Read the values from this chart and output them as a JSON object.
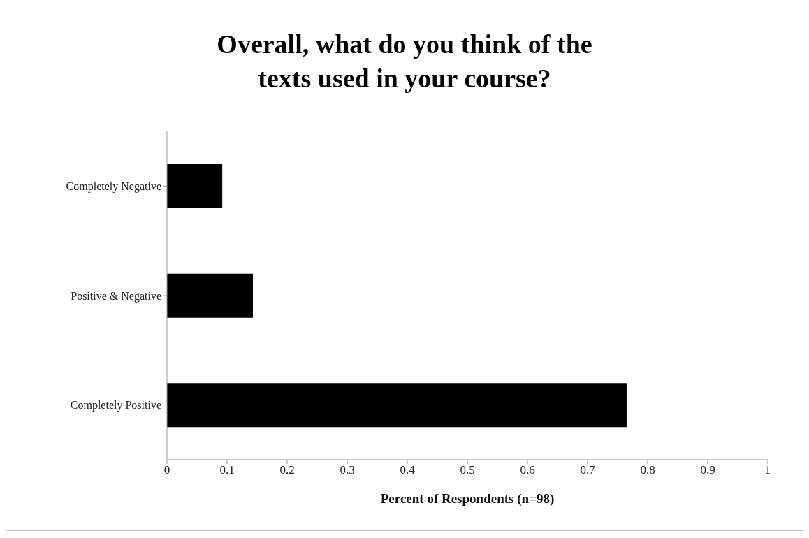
{
  "chart_data": {
    "type": "bar",
    "orientation": "horizontal",
    "title": "Overall, what do you think of the texts used in your course?",
    "xlabel": "Percent of Respondents (n=98)",
    "categories": [
      "Completely Negative",
      "Positive & Negative",
      "Completely Positive"
    ],
    "values": [
      0.092,
      0.143,
      0.765
    ],
    "color": "#000000",
    "xlim": [
      0,
      1
    ],
    "xticks": [
      0,
      0.1,
      0.2,
      0.3,
      0.4,
      0.5,
      0.6,
      0.7,
      0.8,
      0.9,
      1
    ],
    "grid": false
  }
}
